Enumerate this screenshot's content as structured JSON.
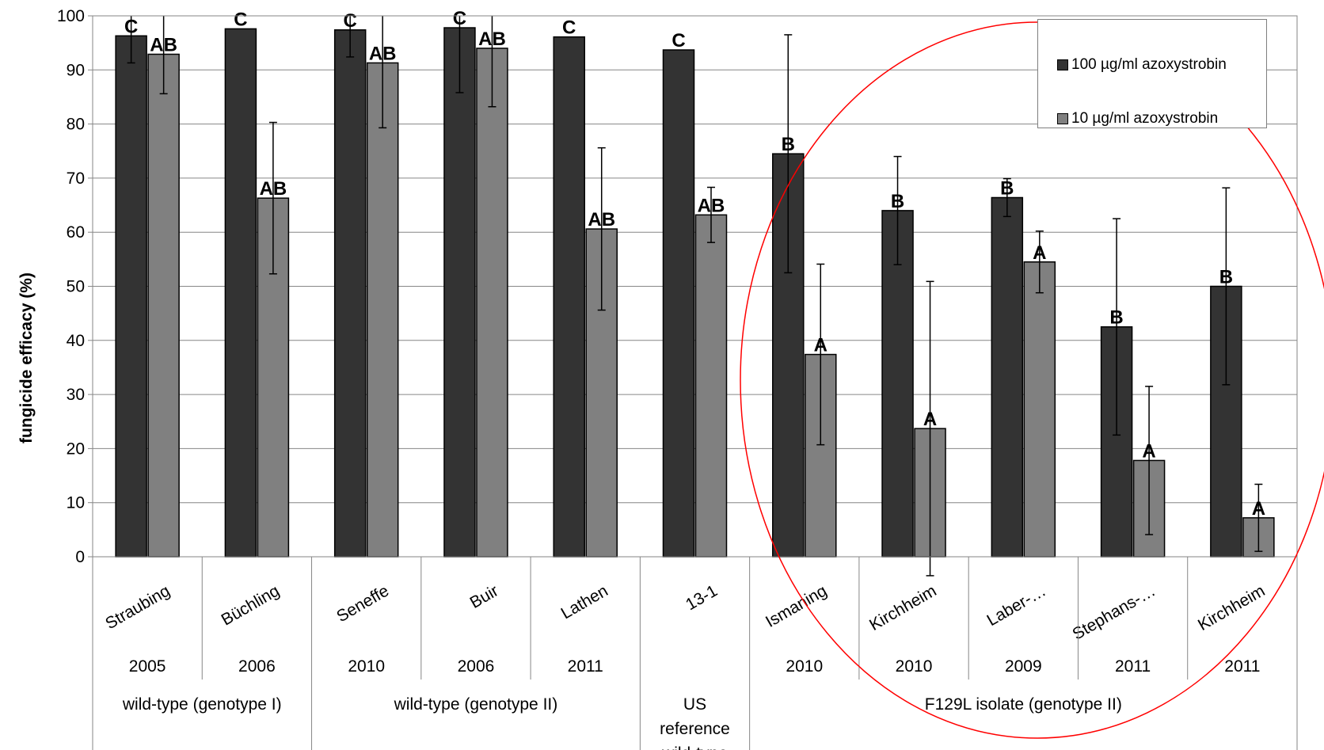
{
  "chart_data": {
    "type": "bar",
    "title": "",
    "ylabel": "fungicide efficacy (%)",
    "ylim": [
      0,
      100
    ],
    "yticks": [
      "0",
      "10",
      "20",
      "30",
      "40",
      "50",
      "60",
      "70",
      "80",
      "90",
      "100"
    ],
    "grid": true,
    "legend_position": "top-right",
    "categories": [
      "Straubing",
      "Büchling",
      "Seneffe",
      "Buir",
      "Lathen",
      "13-1",
      "Ismaning",
      "Kirchheim",
      "Laber-…",
      "Stephans-…",
      "Kirchheim"
    ],
    "years": [
      "2005",
      "2006",
      "2010",
      "2006",
      "2011",
      "",
      "2010",
      "2010",
      "2009",
      "2011",
      "2011"
    ],
    "groups": [
      {
        "label": "wild-type (genotype I)",
        "span": [
          0,
          1
        ]
      },
      {
        "label": "wild-type (genotype II)",
        "span": [
          2,
          4
        ]
      },
      {
        "label": "US reference wild-type",
        "span": [
          5,
          5
        ]
      },
      {
        "label": "F129L isolate (genotype II)",
        "span": [
          6,
          10
        ]
      }
    ],
    "series": [
      {
        "name": "100 µg/ml azoxystrobin",
        "color": "#333333",
        "values": [
          96.3,
          97.6,
          97.4,
          97.8,
          96.1,
          93.7,
          74.5,
          64.0,
          66.4,
          42.5,
          50.0
        ],
        "error": [
          5,
          0,
          5,
          12,
          0,
          0,
          22,
          10,
          3.5,
          20,
          18.2
        ],
        "letters": [
          "C",
          "C",
          "C",
          "C",
          "C",
          "C",
          "B",
          "B",
          "B",
          "B",
          "B"
        ]
      },
      {
        "name": "10 µg/ml azoxystrobin",
        "color": "#808080",
        "values": [
          92.9,
          66.3,
          91.3,
          94.0,
          60.6,
          63.2,
          37.4,
          23.7,
          54.5,
          17.8,
          7.2
        ],
        "error": [
          7.3,
          14,
          12,
          10.8,
          15,
          5.1,
          16.7,
          27.2,
          5.7,
          13.7,
          6.2
        ],
        "letters": [
          "AB",
          "AB",
          "AB",
          "AB",
          "AB",
          "AB",
          "A",
          "A",
          "A",
          "A",
          "A"
        ]
      }
    ]
  }
}
